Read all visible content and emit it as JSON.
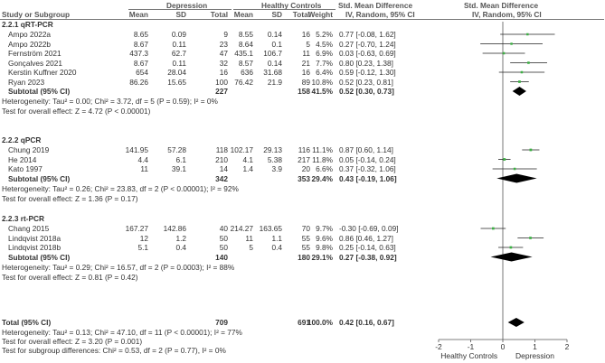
{
  "header": {
    "group_depression": "Depression",
    "group_healthy": "Healthy Controls",
    "col_study": "Study or Subgroup",
    "col_mean1": "Mean",
    "col_sd1": "SD",
    "col_total1": "Total",
    "col_mean2": "Mean",
    "col_sd2": "SD",
    "col_total2": "Total",
    "col_weight": "Weight",
    "col_smd_title": "Std. Mean Difference",
    "col_smd_sub": "IV, Random, 95% CI",
    "plot_title": "Std. Mean Difference",
    "plot_sub": "IV, Random, 95% CI"
  },
  "colors": {
    "point": "#3cb043",
    "diamond": "#000000",
    "text": "#333333"
  },
  "subgroups": [
    {
      "title": "2.2.1 qRT-PCR",
      "studies": [
        {
          "name": "Ampo 2022a",
          "mean1": "8.65",
          "sd1": "0.09",
          "n1": "9",
          "mean2": "8.55",
          "sd2": "0.14",
          "n2": "16",
          "weight": "5.2%",
          "ci_text": "0.77 [-0.08, 1.62]"
        },
        {
          "name": "Ampo 2022b",
          "mean1": "8.67",
          "sd1": "0.11",
          "n1": "23",
          "mean2": "8.64",
          "sd2": "0.1",
          "n2": "5",
          "weight": "4.5%",
          "ci_text": "0.27 [-0.70, 1.24]"
        },
        {
          "name": "Fernström 2021",
          "mean1": "437.3",
          "sd1": "62.7",
          "n1": "47",
          "mean2": "435.1",
          "sd2": "106.7",
          "n2": "11",
          "weight": "6.9%",
          "ci_text": "0.03 [-0.63, 0.69]"
        },
        {
          "name": "Gonçalves 2021",
          "mean1": "8.67",
          "sd1": "0.11",
          "n1": "32",
          "mean2": "8.57",
          "sd2": "0.14",
          "n2": "21",
          "weight": "7.7%",
          "ci_text": "0.80 [0.23, 1.38]"
        },
        {
          "name": "Kerstin Kuffner 2020",
          "mean1": "654",
          "sd1": "28.04",
          "n1": "16",
          "mean2": "636",
          "sd2": "31.68",
          "n2": "16",
          "weight": "6.4%",
          "ci_text": "0.59 [-0.12, 1.30]"
        },
        {
          "name": "Ryan 2023",
          "mean1": "86.26",
          "sd1": "15.65",
          "n1": "100",
          "mean2": "76.42",
          "sd2": "21.9",
          "n2": "89",
          "weight": "10.8%",
          "ci_text": "0.52 [0.23, 0.81]"
        }
      ],
      "subtotal": {
        "label": "Subtotal (95% CI)",
        "n1": "227",
        "n2": "158",
        "weight": "41.5%",
        "ci_text": "0.52 [0.30, 0.73]"
      },
      "heterogeneity": "Heterogeneity: Tau² = 0.00; Chi² = 3.72, df = 5 (P = 0.59); I² = 0%",
      "overall_effect": "Test for overall effect: Z = 4.72 (P < 0.00001)"
    },
    {
      "title": "2.2.2 qPCR",
      "studies": [
        {
          "name": "Chung 2019",
          "mean1": "141.95",
          "sd1": "57.28",
          "n1": "118",
          "mean2": "102.17",
          "sd2": "29.13",
          "n2": "116",
          "weight": "11.1%",
          "ci_text": "0.87 [0.60, 1.14]"
        },
        {
          "name": "He 2014",
          "mean1": "4.4",
          "sd1": "6.1",
          "n1": "210",
          "mean2": "4.1",
          "sd2": "5.38",
          "n2": "217",
          "weight": "11.8%",
          "ci_text": "0.05 [-0.14, 0.24]"
        },
        {
          "name": "Kato 1997",
          "mean1": "11",
          "sd1": "39.1",
          "n1": "14",
          "mean2": "1.4",
          "sd2": "3.9",
          "n2": "20",
          "weight": "6.6%",
          "ci_text": "0.37 [-0.32, 1.06]"
        }
      ],
      "subtotal": {
        "label": "Subtotal (95% CI)",
        "n1": "342",
        "n2": "353",
        "weight": "29.4%",
        "ci_text": "0.43 [-0.19, 1.06]"
      },
      "heterogeneity": "Heterogeneity: Tau² = 0.26; Chi² = 23.83, df = 2 (P < 0.00001); I² = 92%",
      "overall_effect": "Test for overall effect: Z = 1.36 (P = 0.17)"
    },
    {
      "title": "2.2.3 rt-PCR",
      "studies": [
        {
          "name": "Chang 2015",
          "mean1": "167.27",
          "sd1": "142.86",
          "n1": "40",
          "mean2": "214.27",
          "sd2": "163.65",
          "n2": "70",
          "weight": "9.7%",
          "ci_text": "-0.30 [-0.69, 0.09]"
        },
        {
          "name": "Lindqvist 2018a",
          "mean1": "12",
          "sd1": "1.2",
          "n1": "50",
          "mean2": "11",
          "sd2": "1.1",
          "n2": "55",
          "weight": "9.6%",
          "ci_text": "0.86 [0.46, 1.27]"
        },
        {
          "name": "Lindqvist 2018b",
          "mean1": "5.1",
          "sd1": "0.4",
          "n1": "50",
          "mean2": "5",
          "sd2": "0.4",
          "n2": "55",
          "weight": "9.8%",
          "ci_text": "0.25 [-0.14, 0.63]"
        }
      ],
      "subtotal": {
        "label": "Subtotal (95% CI)",
        "n1": "140",
        "n2": "180",
        "weight": "29.1%",
        "ci_text": "0.27 [-0.38, 0.92]"
      },
      "heterogeneity": "Heterogeneity: Tau² = 0.29; Chi² = 16.57, df = 2 (P = 0.0003); I² = 88%",
      "overall_effect": "Test for overall effect: Z = 0.81 (P = 0.42)"
    }
  ],
  "total": {
    "label": "Total (95% CI)",
    "n1": "709",
    "n2": "691",
    "weight": "100.0%",
    "ci_text": "0.42 [0.16, 0.67]",
    "heterogeneity": "Heterogeneity: Tau² = 0.13; Chi² = 47.10, df = 11 (P < 0.00001); I² = 77%",
    "overall_effect": "Test for overall effect: Z = 3.20 (P = 0.001)",
    "subgroup_diff": "Test for subgroup differences: Chi² = 0.53, df = 2 (P = 0.77), I² = 0%"
  },
  "chart_data": {
    "type": "scatter",
    "xlim": [
      -2,
      2
    ],
    "x_ticks": [
      "-2",
      "-1",
      "0",
      "1",
      "2"
    ],
    "x_tick_values": [
      -2,
      -1,
      0,
      1,
      2
    ],
    "xlabel_left": "Healthy Controls",
    "xlabel_right": "Depression",
    "studies": [
      {
        "name": "Ampo 2022a",
        "est": 0.77,
        "lo": -0.08,
        "hi": 1.62,
        "weight": 5.2
      },
      {
        "name": "Ampo 2022b",
        "est": 0.27,
        "lo": -0.7,
        "hi": 1.24,
        "weight": 4.5
      },
      {
        "name": "Fernström 2021",
        "est": 0.03,
        "lo": -0.63,
        "hi": 0.69,
        "weight": 6.9
      },
      {
        "name": "Gonçalves 2021",
        "est": 0.8,
        "lo": 0.23,
        "hi": 1.38,
        "weight": 7.7
      },
      {
        "name": "Kerstin Kuffner 2020",
        "est": 0.59,
        "lo": -0.12,
        "hi": 1.3,
        "weight": 6.4
      },
      {
        "name": "Ryan 2023",
        "est": 0.52,
        "lo": 0.23,
        "hi": 0.81,
        "weight": 10.8
      },
      {
        "name": "Chung 2019",
        "est": 0.87,
        "lo": 0.6,
        "hi": 1.14,
        "weight": 11.1
      },
      {
        "name": "He 2014",
        "est": 0.05,
        "lo": -0.14,
        "hi": 0.24,
        "weight": 11.8
      },
      {
        "name": "Kato 1997",
        "est": 0.37,
        "lo": -0.32,
        "hi": 1.06,
        "weight": 6.6
      },
      {
        "name": "Chang 2015",
        "est": -0.3,
        "lo": -0.69,
        "hi": 0.09,
        "weight": 9.7
      },
      {
        "name": "Lindqvist 2018a",
        "est": 0.86,
        "lo": 0.46,
        "hi": 1.27,
        "weight": 9.6
      },
      {
        "name": "Lindqvist 2018b",
        "est": 0.25,
        "lo": -0.14,
        "hi": 0.63,
        "weight": 9.8
      }
    ],
    "pooled": [
      {
        "name": "Subtotal qRT-PCR",
        "est": 0.52,
        "lo": 0.3,
        "hi": 0.73
      },
      {
        "name": "Subtotal qPCR",
        "est": 0.43,
        "lo": -0.19,
        "hi": 1.06
      },
      {
        "name": "Subtotal rt-PCR",
        "est": 0.27,
        "lo": -0.38,
        "hi": 0.92
      },
      {
        "name": "Total",
        "est": 0.42,
        "lo": 0.16,
        "hi": 0.67
      }
    ]
  }
}
